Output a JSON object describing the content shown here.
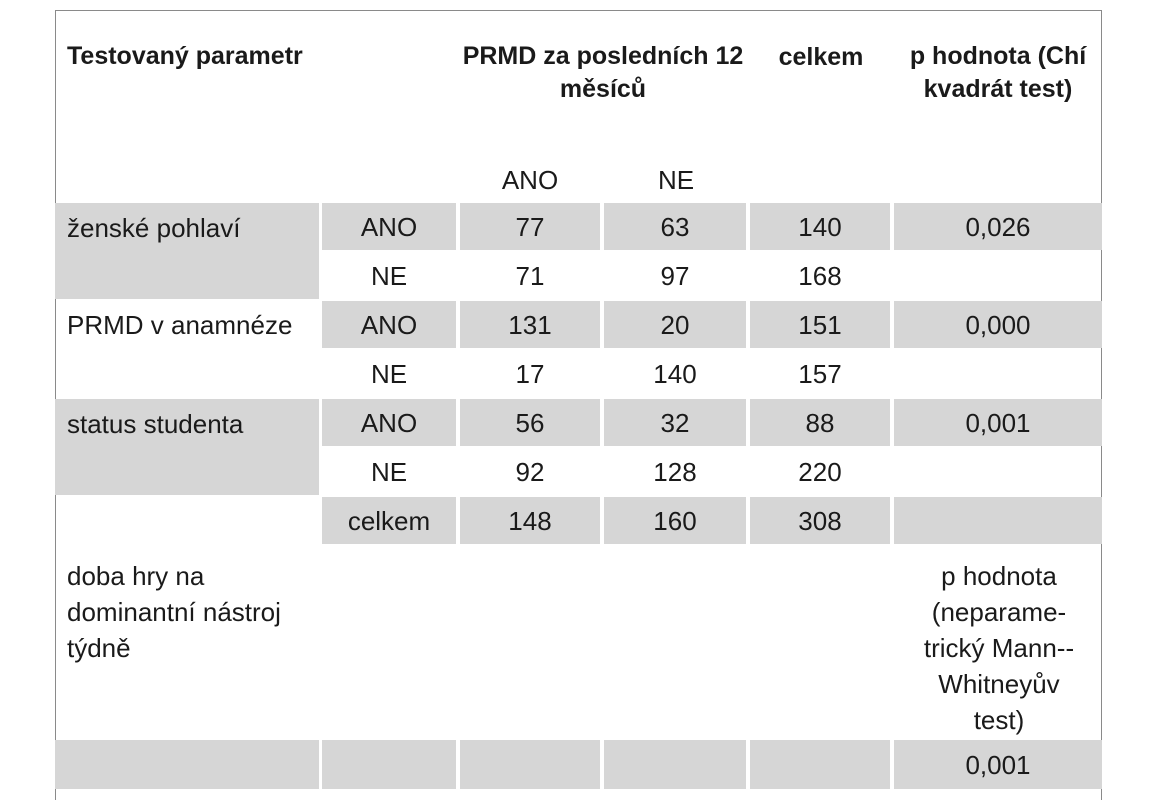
{
  "header": {
    "param_label": "Testovaný parametr",
    "prmd_label": "PRMD za posledních 12 měsíců",
    "total_label": "celkem",
    "p_label": "p hodnota (Chí kvadrát test)",
    "yes_label": "ANO",
    "no_label": "NE"
  },
  "rows": [
    {
      "param": "ženské pohlaví",
      "level": "ANO",
      "ano": "77",
      "ne": "63",
      "total": "140",
      "p": "0,026"
    },
    {
      "param": "",
      "level": "NE",
      "ano": "71",
      "ne": "97",
      "total": "168",
      "p": ""
    },
    {
      "param": "PRMD v anamnéze",
      "level": "ANO",
      "ano": "131",
      "ne": "20",
      "total": "151",
      "p": "0,000"
    },
    {
      "param": "",
      "level": "NE",
      "ano": "17",
      "ne": "140",
      "total": "157",
      "p": ""
    },
    {
      "param": "status studenta",
      "level": "ANO",
      "ano": "56",
      "ne": "32",
      "total": "88",
      "p": "0,001"
    },
    {
      "param": "",
      "level": "NE",
      "ano": "92",
      "ne": "128",
      "total": "220",
      "p": ""
    }
  ],
  "total_row": {
    "level": "celkem",
    "ano": "148",
    "ne": "160",
    "total": "308",
    "p": ""
  },
  "play_section": {
    "param": "doba hry na dominantní nástroj týdně",
    "p_label": "p hodnota (neparame-trický Mann--Whitneyův test)",
    "p_value": "0,001"
  }
}
